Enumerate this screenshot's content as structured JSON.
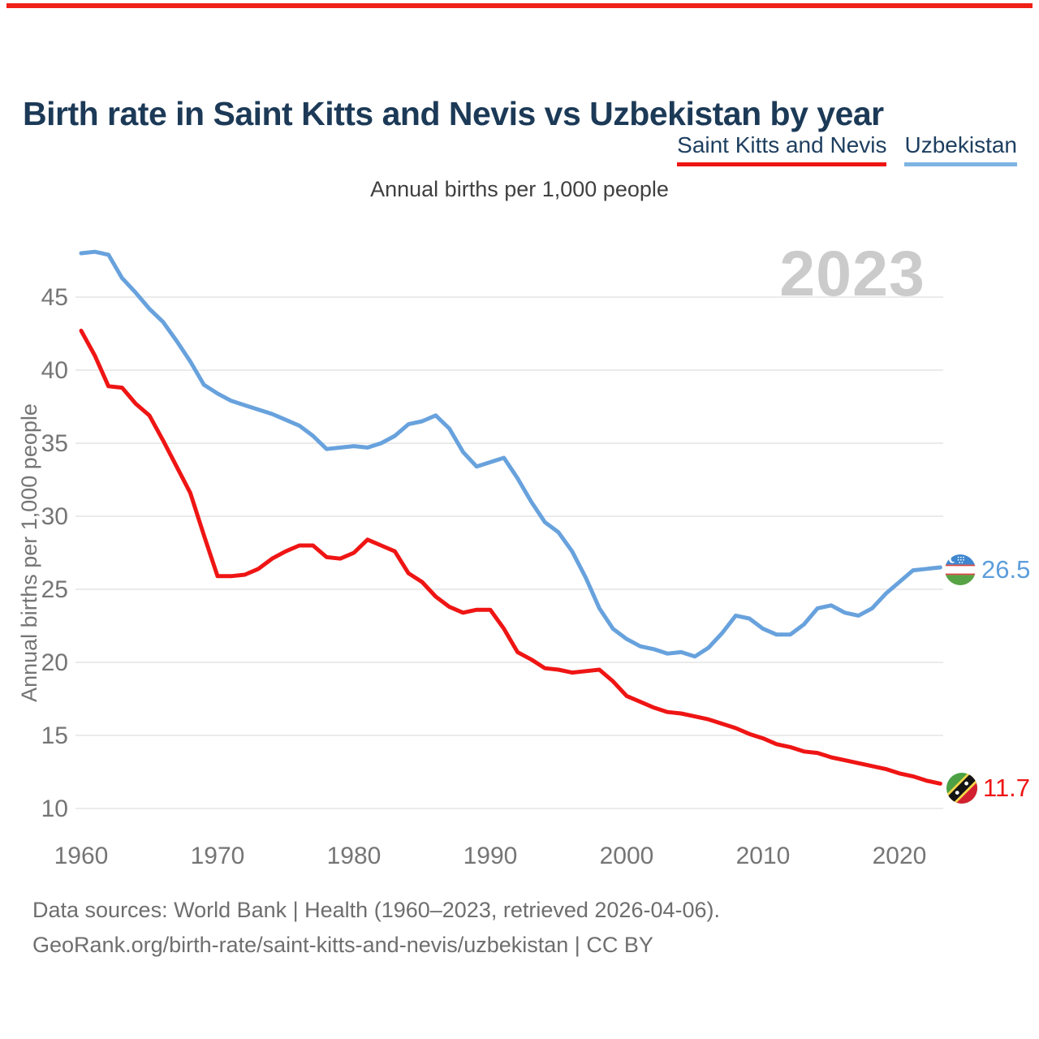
{
  "page": {
    "title": "Birth rate in Saint Kitts and Nevis vs Uzbekistan by year",
    "subtitle": "Annual births per 1,000 people",
    "watermark": "2023",
    "accent_bar_color": "#ef2118",
    "background_color": "#ffffff"
  },
  "chart_data": {
    "type": "line",
    "title": "Birth rate in Saint Kitts and Nevis vs Uzbekistan by year",
    "subtitle": "Annual births per 1,000 people",
    "ylabel": "Annual births per 1,000 people",
    "xlabel": "",
    "grid": "horizontal",
    "legend_position": "top-right",
    "xticks": [
      1960,
      1970,
      1980,
      1990,
      2000,
      2010,
      2020
    ],
    "yticks": [
      10,
      15,
      20,
      25,
      30,
      35,
      40,
      45
    ],
    "ylim": [
      10,
      48.5
    ],
    "xlim": [
      1960,
      2023
    ],
    "years": [
      1960,
      1961,
      1962,
      1963,
      1964,
      1965,
      1966,
      1967,
      1968,
      1969,
      1970,
      1971,
      1972,
      1973,
      1974,
      1975,
      1976,
      1977,
      1978,
      1979,
      1980,
      1981,
      1982,
      1983,
      1984,
      1985,
      1986,
      1987,
      1988,
      1989,
      1990,
      1991,
      1992,
      1993,
      1994,
      1995,
      1996,
      1997,
      1998,
      1999,
      2000,
      2001,
      2002,
      2003,
      2004,
      2005,
      2006,
      2007,
      2008,
      2009,
      2010,
      2011,
      2012,
      2013,
      2014,
      2015,
      2016,
      2017,
      2018,
      2019,
      2020,
      2021,
      2022,
      2023
    ],
    "series": [
      {
        "name": "Saint Kitts and Nevis",
        "flag": "saint-kitts-and-nevis",
        "color": "#ee1514",
        "end_label": "11.7",
        "values": [
          42.7,
          41.0,
          38.9,
          38.8,
          37.7,
          36.9,
          35.2,
          33.4,
          31.6,
          28.7,
          25.9,
          25.9,
          26.0,
          26.4,
          27.1,
          27.6,
          28.0,
          28.0,
          27.2,
          27.1,
          27.5,
          28.4,
          28.0,
          27.6,
          26.1,
          25.5,
          24.5,
          23.8,
          23.4,
          23.6,
          23.6,
          22.3,
          20.7,
          20.2,
          19.6,
          19.5,
          19.3,
          19.4,
          19.5,
          18.7,
          17.7,
          17.3,
          16.9,
          16.6,
          16.5,
          16.3,
          16.1,
          15.8,
          15.5,
          15.1,
          14.8,
          14.4,
          14.2,
          13.9,
          13.8,
          13.5,
          13.3,
          13.1,
          12.9,
          12.7,
          12.4,
          12.2,
          11.9,
          11.7
        ]
      },
      {
        "name": "Uzbekistan",
        "flag": "uzbekistan",
        "color": "#68a2dd",
        "end_label": "26.5",
        "values": [
          48.0,
          48.1,
          47.9,
          46.3,
          45.3,
          44.2,
          43.3,
          42.0,
          40.6,
          39.0,
          38.4,
          37.9,
          37.6,
          37.3,
          37.0,
          36.6,
          36.2,
          35.5,
          34.6,
          34.7,
          34.8,
          34.7,
          35.0,
          35.5,
          36.3,
          36.5,
          36.9,
          36.0,
          34.4,
          33.4,
          33.7,
          34.0,
          32.6,
          31.0,
          29.6,
          28.9,
          27.6,
          25.8,
          23.7,
          22.3,
          21.6,
          21.1,
          20.9,
          20.6,
          20.7,
          20.4,
          21.0,
          22.0,
          23.2,
          23.0,
          22.3,
          21.9,
          21.9,
          22.6,
          23.7,
          23.9,
          23.4,
          23.2,
          23.7,
          24.7,
          25.5,
          26.3,
          26.4,
          26.5
        ]
      }
    ]
  },
  "footer": {
    "line1": "Data sources: World Bank | Health (1960–2023, retrieved 2026-04-06).",
    "line2": "GeoRank.org/birth-rate/saint-kitts-and-nevis/uzbekistan | CC BY"
  }
}
